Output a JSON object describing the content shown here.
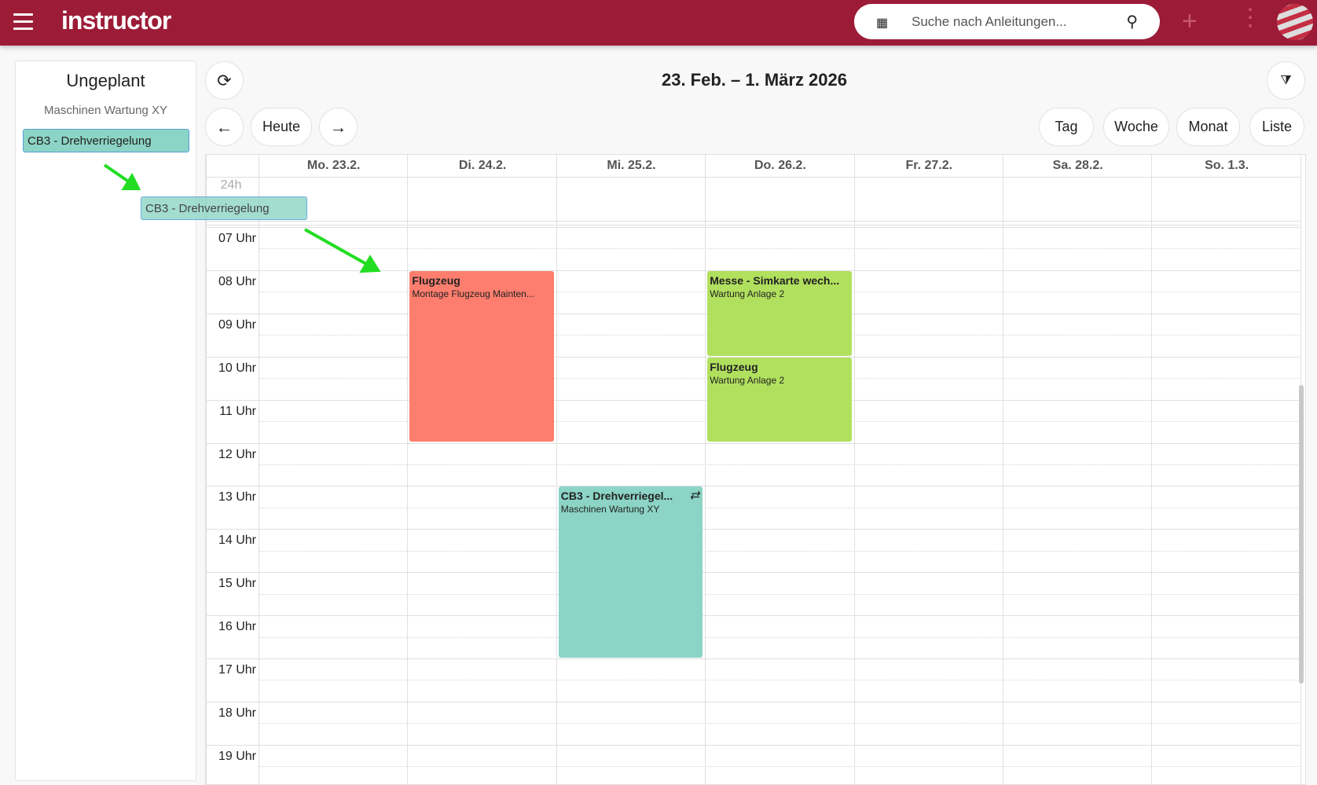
{
  "header": {
    "logo": "instructor",
    "search_placeholder": "Suche nach Anleitungen...",
    "icons": [
      "menu-icon",
      "qr-code-icon",
      "search-icon",
      "plus-icon",
      "more-vert-icon",
      "avatar"
    ]
  },
  "sidebar": {
    "title": "Ungeplant",
    "group": "Maschinen Wartung XY",
    "items": [
      {
        "label": "CB3 - Drehverriegelung"
      }
    ]
  },
  "drag_ghost": {
    "label": "CB3 - Drehverriegelung"
  },
  "toolbar": {
    "title": "23. Feb. – 1. März 2026",
    "today": "Heute",
    "views": [
      "Tag",
      "Woche",
      "Monat",
      "Liste"
    ],
    "active_view": "Woche"
  },
  "calendar": {
    "allday_label": "24h",
    "days": [
      "Mo. 23.2.",
      "Di. 24.2.",
      "Mi. 25.2.",
      "Do. 26.2.",
      "Fr. 27.2.",
      "Sa. 28.2.",
      "So. 1.3."
    ],
    "hours": [
      "07 Uhr",
      "08 Uhr",
      "09 Uhr",
      "10 Uhr",
      "11 Uhr",
      "12 Uhr",
      "13 Uhr",
      "14 Uhr",
      "15 Uhr",
      "16 Uhr",
      "17 Uhr",
      "18 Uhr",
      "19 Uhr"
    ],
    "events": [
      {
        "title": "Flugzeug",
        "subtitle": "Montage Flugzeug Mainten...",
        "day": 1,
        "start": 8,
        "end": 12,
        "color": "#fd7e6e",
        "recurring": false
      },
      {
        "title": "Messe - Simkarte wech...",
        "subtitle": "Wartung Anlage 2",
        "day": 3,
        "start": 8,
        "end": 10,
        "color": "#b1e05e",
        "recurring": false
      },
      {
        "title": "Flugzeug",
        "subtitle": "Wartung Anlage 2",
        "day": 3,
        "start": 10,
        "end": 12,
        "color": "#b1e05e",
        "recurring": false
      },
      {
        "title": "CB3 - Drehverriegel...",
        "subtitle": "Maschinen Wartung XY",
        "day": 2,
        "start": 13,
        "end": 17,
        "color": "#8cd4c6",
        "recurring": true
      }
    ]
  },
  "colors": {
    "brand": "#9c1c37",
    "arrow": "#22dd22"
  }
}
